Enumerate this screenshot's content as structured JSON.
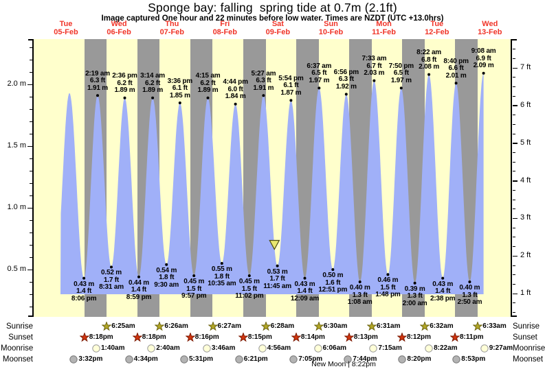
{
  "chart_data": {
    "type": "area",
    "title": "Sponge bay: falling  spring tide at 0.7m (2.1ft)",
    "subtitle": "Image captured One hour and 22 minutes before low water. Times are NZDT (UTC +13.0hrs)",
    "days": [
      {
        "name": "Tue",
        "date": "05-Feb"
      },
      {
        "name": "Wed",
        "date": "06-Feb"
      },
      {
        "name": "Thu",
        "date": "07-Feb"
      },
      {
        "name": "Fri",
        "date": "08-Feb"
      },
      {
        "name": "Sat",
        "date": "09-Feb"
      },
      {
        "name": "Sun",
        "date": "10-Feb"
      },
      {
        "name": "Mon",
        "date": "11-Feb"
      },
      {
        "name": "Tue",
        "date": "12-Feb"
      },
      {
        "name": "Wed",
        "date": "13-Feb"
      }
    ],
    "y_axis_left": {
      "unit": "m",
      "ticks": [
        {
          "value": 0.5,
          "label": "0.5 m"
        },
        {
          "value": 1.0,
          "label": "1.0 m"
        },
        {
          "value": 1.5,
          "label": "1.5 m"
        },
        {
          "value": 2.0,
          "label": "2.0 m"
        }
      ]
    },
    "y_axis_right": {
      "unit": "ft",
      "ticks": [
        {
          "value": 1,
          "label": "1 ft"
        },
        {
          "value": 2,
          "label": "2 ft"
        },
        {
          "value": 3,
          "label": "3 ft"
        },
        {
          "value": 4,
          "label": "4 ft"
        },
        {
          "value": 5,
          "label": "5 ft"
        },
        {
          "value": 6,
          "label": "6 ft"
        },
        {
          "value": 7,
          "label": "7 ft"
        }
      ]
    },
    "high_tides": [
      {
        "day": 0,
        "time": "1:33 pm",
        "height_m": 1.93,
        "labeled": false
      },
      {
        "day": 1,
        "time": "2:19 am",
        "height_m": 1.91,
        "height_ft": 6.3,
        "labeled": true
      },
      {
        "day": 1,
        "time": "2:36 pm",
        "height_m": 1.89,
        "height_ft": 6.2,
        "labeled": true
      },
      {
        "day": 2,
        "time": "3:14 am",
        "height_m": 1.89,
        "height_ft": 6.2,
        "labeled": true
      },
      {
        "day": 2,
        "time": "3:36 pm",
        "height_m": 1.85,
        "height_ft": 6.1,
        "labeled": true
      },
      {
        "day": 3,
        "time": "4:15 am",
        "height_m": 1.89,
        "height_ft": 6.2,
        "labeled": true
      },
      {
        "day": 3,
        "time": "4:44 pm",
        "height_m": 1.84,
        "height_ft": 6.0,
        "labeled": true
      },
      {
        "day": 4,
        "time": "5:27 am",
        "height_m": 1.91,
        "height_ft": 6.3,
        "labeled": true
      },
      {
        "day": 4,
        "time": "5:54 pm",
        "height_m": 1.87,
        "height_ft": 6.1,
        "labeled": true
      },
      {
        "day": 5,
        "time": "6:37 am",
        "height_m": 1.97,
        "height_ft": 6.5,
        "labeled": true
      },
      {
        "day": 5,
        "time": "6:56 pm",
        "height_m": 1.92,
        "height_ft": 6.3,
        "labeled": true
      },
      {
        "day": 6,
        "time": "7:33 am",
        "height_m": 2.03,
        "height_ft": 6.7,
        "labeled": true
      },
      {
        "day": 6,
        "time": "7:50 pm",
        "height_m": 1.97,
        "height_ft": 6.5,
        "labeled": true
      },
      {
        "day": 7,
        "time": "8:22 am",
        "height_m": 2.08,
        "height_ft": 6.8,
        "labeled": true
      },
      {
        "day": 7,
        "time": "8:40 pm",
        "height_m": 2.01,
        "height_ft": 6.6,
        "labeled": true
      },
      {
        "day": 8,
        "time": "9:08 am",
        "height_m": 2.09,
        "height_ft": 6.9,
        "labeled": true
      }
    ],
    "low_tides": [
      {
        "day": 0,
        "time": "7:15 am",
        "height_m": 0.5,
        "labeled": false
      },
      {
        "day": 0,
        "time": "8:06 pm",
        "height_m": 0.43,
        "height_ft": 1.4,
        "labeled": true
      },
      {
        "day": 1,
        "time": "8:31 am",
        "height_m": 0.52,
        "height_ft": 1.7,
        "labeled": true
      },
      {
        "day": 1,
        "time": "8:59 pm",
        "height_m": 0.44,
        "height_ft": 1.4,
        "labeled": true
      },
      {
        "day": 2,
        "time": "9:30 am",
        "height_m": 0.54,
        "height_ft": 1.8,
        "labeled": true
      },
      {
        "day": 2,
        "time": "9:57 pm",
        "height_m": 0.45,
        "height_ft": 1.5,
        "labeled": true
      },
      {
        "day": 3,
        "time": "10:35 am",
        "height_m": 0.55,
        "height_ft": 1.8,
        "labeled": true
      },
      {
        "day": 3,
        "time": "11:02 pm",
        "height_m": 0.45,
        "height_ft": 1.5,
        "labeled": true
      },
      {
        "day": 4,
        "time": "11:45 am",
        "height_m": 0.53,
        "height_ft": 1.7,
        "labeled": true
      },
      {
        "day": 5,
        "time": "12:09 am",
        "height_m": 0.43,
        "height_ft": 1.4,
        "labeled": true
      },
      {
        "day": 5,
        "time": "12:51 pm",
        "height_m": 0.5,
        "height_ft": 1.6,
        "labeled": true
      },
      {
        "day": 6,
        "time": "1:08 am",
        "height_m": 0.4,
        "height_ft": 1.3,
        "labeled": true
      },
      {
        "day": 6,
        "time": "1:48 pm",
        "height_m": 0.46,
        "height_ft": 1.5,
        "labeled": true
      },
      {
        "day": 7,
        "time": "2:00 am",
        "height_m": 0.39,
        "height_ft": 1.3,
        "labeled": true
      },
      {
        "day": 7,
        "time": "2:38 pm",
        "height_m": 0.43,
        "height_ft": 1.4,
        "labeled": true
      },
      {
        "day": 8,
        "time": "2:50 am",
        "height_m": 0.4,
        "height_ft": 1.3,
        "labeled": true
      }
    ],
    "current_marker": {
      "day": 4,
      "time": "10:23 am",
      "height_m": 0.7
    },
    "sun_moon": {
      "sunrise": {
        "label": "Sunrise",
        "icon": "sunrise-star-icon",
        "entries": [
          {
            "day": 1,
            "time": "6:25am"
          },
          {
            "day": 2,
            "time": "6:26am"
          },
          {
            "day": 3,
            "time": "6:27am"
          },
          {
            "day": 4,
            "time": "6:28am"
          },
          {
            "day": 5,
            "time": "6:30am"
          },
          {
            "day": 6,
            "time": "6:31am"
          },
          {
            "day": 7,
            "time": "6:32am"
          },
          {
            "day": 8,
            "time": "6:33am"
          }
        ]
      },
      "sunset": {
        "label": "Sunset",
        "icon": "sunset-star-icon",
        "entries": [
          {
            "day": 0,
            "time": "8:18pm"
          },
          {
            "day": 1,
            "time": "8:18pm"
          },
          {
            "day": 2,
            "time": "8:16pm"
          },
          {
            "day": 3,
            "time": "8:15pm"
          },
          {
            "day": 4,
            "time": "8:14pm"
          },
          {
            "day": 5,
            "time": "8:13pm"
          },
          {
            "day": 6,
            "time": "8:12pm"
          },
          {
            "day": 7,
            "time": "8:11pm"
          }
        ]
      },
      "moonrise": {
        "label": "Moonrise",
        "icon": "moonrise-circle-icon",
        "entries": [
          {
            "day": 1,
            "time": "1:40am"
          },
          {
            "day": 2,
            "time": "2:40am"
          },
          {
            "day": 3,
            "time": "3:46am"
          },
          {
            "day": 4,
            "time": "4:56am"
          },
          {
            "day": 5,
            "time": "6:06am"
          },
          {
            "day": 6,
            "time": "7:15am"
          },
          {
            "day": 7,
            "time": "8:22am"
          },
          {
            "day": 8,
            "time": "9:27am"
          }
        ]
      },
      "moonset": {
        "label": "Moonset",
        "icon": "moonset-circle-icon",
        "entries": [
          {
            "day": 0,
            "time": "3:32pm"
          },
          {
            "day": 1,
            "time": "4:34pm"
          },
          {
            "day": 2,
            "time": "5:31pm"
          },
          {
            "day": 3,
            "time": "6:21pm"
          },
          {
            "day": 4,
            "time": "7:05pm"
          },
          {
            "day": 5,
            "time": "7:44pm"
          },
          {
            "day": 6,
            "time": "8:20pm"
          },
          {
            "day": 7,
            "time": "8:53pm"
          }
        ]
      }
    },
    "moon_phase": "New Moon | 8:22pm",
    "colors": {
      "day_band": "#ffffcc",
      "night_band": "#999999",
      "tide_fill": "#a0b0f8",
      "date_text": "#f03428",
      "annotation_text": "#000000",
      "sunrise_star": "#b2a625",
      "sunset_star": "#d1340e",
      "moonrise_circle": "#ffffd8",
      "moonset_circle": "#b3b3b3",
      "marker_fill": "#e8e870"
    }
  }
}
